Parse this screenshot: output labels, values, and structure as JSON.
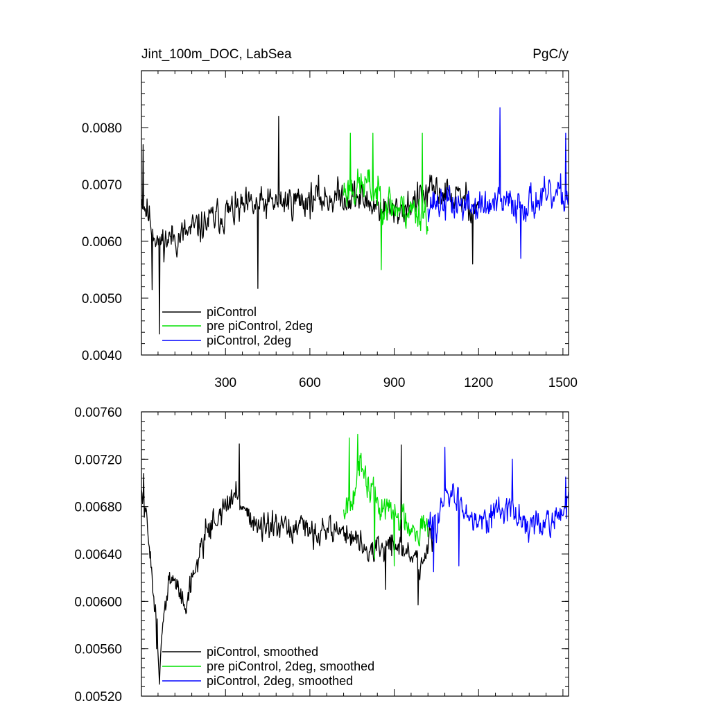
{
  "chart_data": [
    {
      "type": "line",
      "title_left": "Jint_100m_DOC, LabSea",
      "title_right": "PgC/y",
      "xlabel": "",
      "ylabel": "",
      "xlim": [
        1,
        1520
      ],
      "ylim": [
        0.004,
        0.009
      ],
      "x_ticks": [
        300,
        600,
        900,
        1200,
        1500
      ],
      "x_tick_labels": [
        "300",
        "600",
        "900",
        "1200",
        "1500"
      ],
      "y_ticks": [
        0.004,
        0.005,
        0.006,
        0.007,
        0.008
      ],
      "y_tick_labels": [
        "0.0040",
        "0.0050",
        "0.0060",
        "0.0070",
        "0.0080"
      ],
      "legend_position": "bottom-left",
      "series": [
        {
          "name": "piControl",
          "color": "#000000",
          "x_range": [
            1,
            1200
          ],
          "base": 0.0066,
          "spread": 0.00045,
          "seed": 11,
          "anchors": [
            [
              1,
              0.0068
            ],
            [
              60,
              0.006
            ],
            [
              150,
              0.0061
            ],
            [
              300,
              0.0065
            ],
            [
              500,
              0.0067
            ],
            [
              750,
              0.0068
            ],
            [
              900,
              0.0065
            ],
            [
              1050,
              0.0069
            ],
            [
              1200,
              0.0066
            ]
          ],
          "extremes": [
            [
              8,
              0.0077
            ],
            [
              65,
              0.00437
            ],
            [
              40,
              0.00515
            ],
            [
              490,
              0.0082
            ],
            [
              415,
              0.00517
            ],
            [
              1180,
              0.0056
            ]
          ]
        },
        {
          "name": "pre piControl, 2deg",
          "color": "#00e000",
          "x_range": [
            720,
            1020
          ],
          "base": 0.0067,
          "spread": 0.0005,
          "seed": 23,
          "anchors": [
            [
              720,
              0.0069
            ],
            [
              800,
              0.007
            ],
            [
              900,
              0.0066
            ],
            [
              1020,
              0.0065
            ]
          ],
          "extremes": [
            [
              745,
              0.0079
            ],
            [
              825,
              0.0079
            ],
            [
              1000,
              0.0079
            ],
            [
              855,
              0.0055
            ]
          ]
        },
        {
          "name": "piControl, 2deg",
          "color": "#0000ff",
          "x_range": [
            1020,
            1520
          ],
          "base": 0.0067,
          "spread": 0.00045,
          "seed": 37,
          "anchors": [
            [
              1020,
              0.0067
            ],
            [
              1200,
              0.0066
            ],
            [
              1400,
              0.0067
            ],
            [
              1520,
              0.0068
            ]
          ],
          "extremes": [
            [
              1277,
              0.00835
            ],
            [
              1510,
              0.0079
            ],
            [
              1350,
              0.0057
            ]
          ]
        }
      ]
    },
    {
      "type": "line",
      "xlim": [
        1,
        1520
      ],
      "ylim": [
        0.0052,
        0.0076
      ],
      "x_ticks": [
        300,
        600,
        900,
        1200,
        1500
      ],
      "y_ticks": [
        0.0052,
        0.0056,
        0.006,
        0.0064,
        0.0068,
        0.0072,
        0.0076
      ],
      "y_tick_labels": [
        "0.00520",
        "0.00560",
        "0.00600",
        "0.00640",
        "0.00680",
        "0.00720",
        "0.00760"
      ],
      "legend_position": "bottom-left",
      "series": [
        {
          "name": "piControl, smoothed",
          "color": "#000000",
          "x_range": [
            1,
            1040
          ],
          "base": 0.0066,
          "spread": 0.00018,
          "seed": 51,
          "anchors": [
            [
              1,
              0.0069
            ],
            [
              30,
              0.0065
            ],
            [
              65,
              0.0055
            ],
            [
              100,
              0.0062
            ],
            [
              160,
              0.006
            ],
            [
              230,
              0.0066
            ],
            [
              340,
              0.0069
            ],
            [
              420,
              0.0066
            ],
            [
              600,
              0.0066
            ],
            [
              720,
              0.0066
            ],
            [
              820,
              0.0064
            ],
            [
              900,
              0.0065
            ],
            [
              1000,
              0.0063
            ],
            [
              1040,
              0.0066
            ]
          ],
          "extremes": [
            [
              10,
              0.00708
            ],
            [
              55,
              0.0056
            ],
            [
              65,
              0.0053
            ],
            [
              350,
              0.00733
            ],
            [
              925,
              0.00732
            ],
            [
              985,
              0.00597
            ],
            [
              870,
              0.0061
            ]
          ]
        },
        {
          "name": "pre piControl, 2deg, smoothed",
          "color": "#00e000",
          "x_range": [
            720,
            1020
          ],
          "base": 0.0068,
          "spread": 0.00022,
          "seed": 67,
          "anchors": [
            [
              720,
              0.0068
            ],
            [
              780,
              0.0071
            ],
            [
              850,
              0.0068
            ],
            [
              930,
              0.0067
            ],
            [
              1020,
              0.0066
            ]
          ],
          "extremes": [
            [
              770,
              0.00741
            ],
            [
              740,
              0.00738
            ],
            [
              830,
              0.00636
            ],
            [
              900,
              0.0063
            ]
          ]
        },
        {
          "name": "piControl, 2deg, smoothed",
          "color": "#0000ff",
          "x_range": [
            1020,
            1520
          ],
          "base": 0.0067,
          "spread": 0.0002,
          "seed": 83,
          "anchors": [
            [
              1020,
              0.0066
            ],
            [
              1100,
              0.0069
            ],
            [
              1200,
              0.0067
            ],
            [
              1300,
              0.0068
            ],
            [
              1400,
              0.0066
            ],
            [
              1520,
              0.0068
            ]
          ],
          "extremes": [
            [
              1040,
              0.00625
            ],
            [
              1080,
              0.0073
            ],
            [
              1320,
              0.0072
            ],
            [
              1130,
              0.0063
            ],
            [
              1510,
              0.00705
            ]
          ]
        }
      ]
    }
  ]
}
